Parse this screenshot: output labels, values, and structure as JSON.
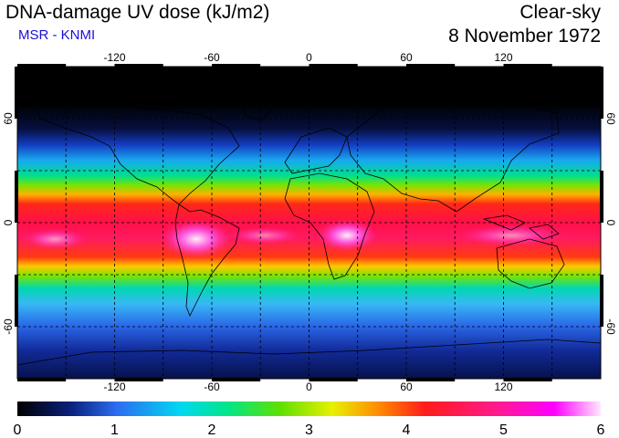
{
  "header": {
    "title": "DNA-damage UV dose (kJ/m2)",
    "source": "MSR - KNMI",
    "condition": "Clear-sky",
    "date": "8 November 1972"
  },
  "map": {
    "projection": "equirectangular",
    "lon_ticks": [
      "-120",
      "-60",
      "0",
      "60",
      "120"
    ],
    "lat_ticks_left": [
      "60",
      "0",
      "-60"
    ],
    "lat_ticks_right": [
      "60",
      "0",
      "-60"
    ],
    "gridlines": "dashed every 30 degrees",
    "colors": {
      "gridline": "#000000",
      "frame": "#000000"
    }
  },
  "colorbar": {
    "labels": [
      "0",
      "1",
      "2",
      "3",
      "4",
      "5",
      "6"
    ],
    "min": 0,
    "max": 6,
    "stops": [
      "#000000",
      "#0a1f7a",
      "#2c6cf0",
      "#00d8f0",
      "#00e68a",
      "#5ee000",
      "#e8f000",
      "#ff8a00",
      "#ff1a1a",
      "#ff1a8c",
      "#ff00ff",
      "#ffd0ff"
    ]
  }
}
